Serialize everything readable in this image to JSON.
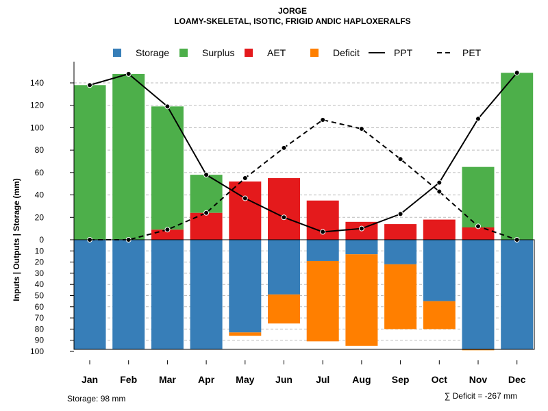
{
  "title": "JORGE",
  "subtitle": "LOAMY-SKELETAL, ISOTIC, FRIGID ANDIC HAPLOXERALFS",
  "ylabel": "Inputs | Outputs | Storage    (mm)",
  "storage_note": "Storage: 98 mm",
  "deficit_note": "∑ Deficit = -267 mm",
  "colors": {
    "storage": "#377EB8",
    "surplus": "#4DAF4A",
    "aet": "#E41A1C",
    "deficit": "#FF7F00",
    "line": "#000000",
    "grid": "#bbbbbb"
  },
  "legend": [
    {
      "key": "storage",
      "label": "Storage",
      "kind": "box"
    },
    {
      "key": "surplus",
      "label": "Surplus",
      "kind": "box"
    },
    {
      "key": "aet",
      "label": "AET",
      "kind": "box"
    },
    {
      "key": "deficit",
      "label": "Deficit",
      "kind": "box"
    },
    {
      "key": "ppt",
      "label": "PPT",
      "kind": "solid"
    },
    {
      "key": "pet",
      "label": "PET",
      "kind": "dashed"
    }
  ],
  "chart_data": {
    "type": "bar",
    "categories": [
      "Jan",
      "Feb",
      "Mar",
      "Apr",
      "May",
      "Jun",
      "Jul",
      "Aug",
      "Sep",
      "Oct",
      "Nov",
      "Dec"
    ],
    "upper_ticks": [
      0,
      20,
      40,
      60,
      80,
      100,
      120,
      140
    ],
    "lower_ticks": [
      10,
      20,
      30,
      40,
      50,
      60,
      70,
      80,
      90,
      100
    ],
    "ylim_upper": [
      0,
      150
    ],
    "ylim_lower": [
      0,
      100
    ],
    "aet": [
      0,
      0,
      9,
      24,
      52,
      55,
      35,
      16,
      14,
      18,
      11,
      0
    ],
    "surplus_top": [
      138,
      148,
      119,
      58,
      0,
      0,
      0,
      0,
      0,
      0,
      65,
      149
    ],
    "storage": [
      98,
      98,
      98,
      98,
      83,
      49,
      19,
      13,
      22,
      55,
      98,
      98
    ],
    "deficit_bottom": [
      0,
      0,
      0,
      0,
      86,
      75,
      91,
      95,
      80,
      80,
      99,
      0
    ],
    "ppt": [
      138,
      148,
      119,
      58,
      37,
      20,
      7,
      10,
      23,
      51,
      108,
      149
    ],
    "pet": [
      0,
      0,
      9,
      24,
      55,
      82,
      107,
      99,
      72,
      43,
      12,
      0
    ],
    "series": [
      {
        "name": "Storage"
      },
      {
        "name": "Surplus"
      },
      {
        "name": "AET"
      },
      {
        "name": "Deficit"
      },
      {
        "name": "PPT"
      },
      {
        "name": "PET"
      }
    ]
  }
}
